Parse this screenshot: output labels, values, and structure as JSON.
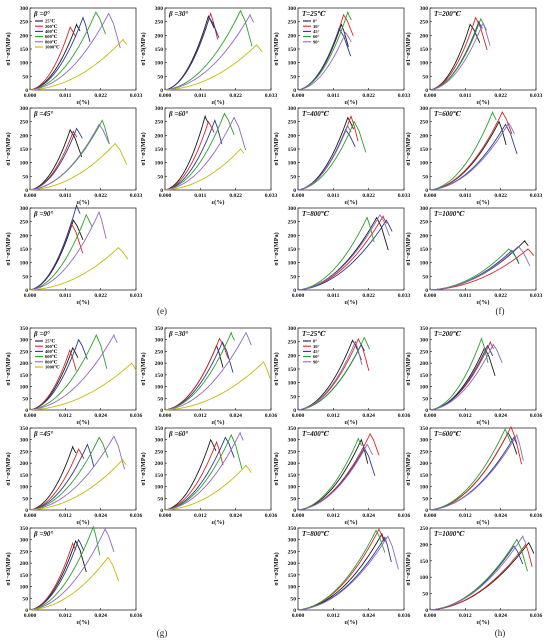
{
  "figure": {
    "captions": [
      {
        "id": "e",
        "text": "(e)"
      },
      {
        "id": "f",
        "text": "(f)"
      },
      {
        "id": "g",
        "text": "(g)"
      },
      {
        "id": "h",
        "text": "(h)"
      }
    ]
  },
  "axes": {
    "ylabel": "σ1−σ3(MPa)",
    "xlabel": "ε(%)",
    "x_ticks_top": [
      "0.000",
      "0.011",
      "0.022",
      "0.033"
    ],
    "x_ticks_bottom": [
      "0.000",
      "0.012",
      "0.024",
      "0.036"
    ],
    "y_ticks": [
      "0",
      "50",
      "100",
      "150",
      "200",
      "250",
      "300"
    ],
    "y_ticks_bottom": [
      "0",
      "50",
      "100",
      "150",
      "200",
      "250",
      "300",
      "350"
    ]
  },
  "legend_temp": {
    "title": "β =0°",
    "entries": [
      "25℃",
      "200℃",
      "400℃",
      "600℃",
      "800℃",
      "1000℃"
    ]
  },
  "legend_angle": {
    "title": "T=25℃",
    "entries": [
      "0°",
      "30°",
      "45°",
      "60°",
      "90°"
    ]
  },
  "colors": {
    "temp": [
      "#1a1a1a",
      "#d62728",
      "#2b3a8f",
      "#2ca02c",
      "#8e6bbf",
      "#c9b80a"
    ],
    "angle": [
      "#1a1a1a",
      "#d62728",
      "#2b3a8f",
      "#2ca02c",
      "#8e6bbf"
    ]
  },
  "chart_data": [
    {
      "id": "e1",
      "type": "line",
      "title": "β =0°",
      "xlabel": "ε(%)",
      "ylabel": "σ1−σ3(MPa)",
      "xlim": [
        0,
        0.033
      ],
      "ylim": [
        0,
        300
      ],
      "legend": "temperature",
      "series": [
        {
          "name": "25℃",
          "x_peak": 0.0145,
          "y_peak": 240
        },
        {
          "name": "200℃",
          "x_peak": 0.0125,
          "y_peak": 230
        },
        {
          "name": "400℃",
          "x_peak": 0.0165,
          "y_peak": 265
        },
        {
          "name": "600℃",
          "x_peak": 0.0205,
          "y_peak": 285
        },
        {
          "name": "800℃",
          "x_peak": 0.0245,
          "y_peak": 280
        },
        {
          "name": "1000℃",
          "x_peak": 0.029,
          "y_peak": 185
        }
      ]
    },
    {
      "id": "e2",
      "type": "line",
      "title": "β =30°",
      "xlabel": "ε(%)",
      "ylabel": "σ1−σ3(MPa)",
      "xlim": [
        0,
        0.033
      ],
      "ylim": [
        0,
        300
      ],
      "series": [
        {
          "name": "25℃",
          "x_peak": 0.0135,
          "y_peak": 270
        },
        {
          "name": "200℃",
          "x_peak": 0.0142,
          "y_peak": 280
        },
        {
          "name": "400℃",
          "x_peak": 0.0138,
          "y_peak": 265
        },
        {
          "name": "600℃",
          "x_peak": 0.0235,
          "y_peak": 290
        },
        {
          "name": "800℃",
          "x_peak": 0.0265,
          "y_peak": 275
        },
        {
          "name": "1000℃",
          "x_peak": 0.0285,
          "y_peak": 165
        }
      ]
    },
    {
      "id": "e3",
      "type": "line",
      "title": "T=25℃",
      "xlabel": "ε(%)",
      "ylabel": "σ1−σ3(MPa)",
      "xlim": [
        0,
        0.033
      ],
      "ylim": [
        0,
        300
      ],
      "legend": "angle",
      "series": [
        {
          "name": "0°",
          "x_peak": 0.0135,
          "y_peak": 240
        },
        {
          "name": "30°",
          "x_peak": 0.0142,
          "y_peak": 275
        },
        {
          "name": "45°",
          "x_peak": 0.0128,
          "y_peak": 225
        },
        {
          "name": "60°",
          "x_peak": 0.0155,
          "y_peak": 285
        },
        {
          "name": "90°",
          "x_peak": 0.0148,
          "y_peak": 210
        }
      ]
    },
    {
      "id": "e4",
      "type": "line",
      "title": "T=200℃",
      "xlabel": "ε(%)",
      "ylabel": "σ1−σ3(MPa)",
      "xlim": [
        0,
        0.033
      ],
      "ylim": [
        0,
        300
      ],
      "series": [
        {
          "name": "0°",
          "x_peak": 0.0125,
          "y_peak": 240
        },
        {
          "name": "30°",
          "x_peak": 0.0142,
          "y_peak": 265
        },
        {
          "name": "45°",
          "x_peak": 0.0152,
          "y_peak": 250
        },
        {
          "name": "60°",
          "x_peak": 0.0158,
          "y_peak": 260
        },
        {
          "name": "90°",
          "x_peak": 0.0165,
          "y_peak": 245
        }
      ]
    },
    {
      "id": "e5",
      "type": "line",
      "title": "β =45°",
      "xlabel": "ε(%)",
      "ylabel": "σ1−σ3(MPa)",
      "xlim": [
        0,
        0.033
      ],
      "ylim": [
        0,
        300
      ],
      "series": [
        {
          "name": "25℃",
          "x_peak": 0.0125,
          "y_peak": 220
        },
        {
          "name": "200℃",
          "x_peak": 0.0135,
          "y_peak": 215
        },
        {
          "name": "400℃",
          "x_peak": 0.0145,
          "y_peak": 225
        },
        {
          "name": "600℃",
          "x_peak": 0.0225,
          "y_peak": 255
        },
        {
          "name": "800℃",
          "x_peak": 0.0215,
          "y_peak": 240
        },
        {
          "name": "1000℃",
          "x_peak": 0.0265,
          "y_peak": 170
        }
      ]
    },
    {
      "id": "e6",
      "type": "line",
      "title": "β =60°",
      "xlabel": "ε(%)",
      "ylabel": "σ1−σ3(MPa)",
      "xlim": [
        0,
        0.033
      ],
      "ylim": [
        0,
        300
      ],
      "series": [
        {
          "name": "25℃",
          "x_peak": 0.0125,
          "y_peak": 270
        },
        {
          "name": "200℃",
          "x_peak": 0.0135,
          "y_peak": 250
        },
        {
          "name": "400℃",
          "x_peak": 0.0155,
          "y_peak": 255
        },
        {
          "name": "600℃",
          "x_peak": 0.0185,
          "y_peak": 280
        },
        {
          "name": "800℃",
          "x_peak": 0.0215,
          "y_peak": 265
        },
        {
          "name": "1000℃",
          "x_peak": 0.0235,
          "y_peak": 150
        }
      ]
    },
    {
      "id": "e7",
      "type": "line",
      "title": "T=400℃",
      "xlabel": "ε(%)",
      "ylabel": "σ1−σ3(MPa)",
      "xlim": [
        0,
        0.033
      ],
      "ylim": [
        0,
        300
      ],
      "series": [
        {
          "name": "0°",
          "x_peak": 0.0155,
          "y_peak": 265
        },
        {
          "name": "30°",
          "x_peak": 0.0165,
          "y_peak": 270
        },
        {
          "name": "45°",
          "x_peak": 0.0148,
          "y_peak": 220
        },
        {
          "name": "60°",
          "x_peak": 0.0175,
          "y_peak": 250
        },
        {
          "name": "90°",
          "x_peak": 0.0155,
          "y_peak": 235
        }
      ]
    },
    {
      "id": "e8",
      "type": "line",
      "title": "T=600℃",
      "xlabel": "ε(%)",
      "ylabel": "σ1−σ3(MPa)",
      "xlim": [
        0,
        0.033
      ],
      "ylim": [
        0,
        300
      ],
      "series": [
        {
          "name": "0°",
          "x_peak": 0.0215,
          "y_peak": 250
        },
        {
          "name": "30°",
          "x_peak": 0.0225,
          "y_peak": 285
        },
        {
          "name": "45°",
          "x_peak": 0.0235,
          "y_peak": 240
        },
        {
          "name": "60°",
          "x_peak": 0.0195,
          "y_peak": 285
        },
        {
          "name": "90°",
          "x_peak": 0.0245,
          "y_peak": 245
        }
      ]
    },
    {
      "id": "e9",
      "type": "line",
      "title": "β =90°",
      "xlabel": "ε(%)",
      "ylabel": "σ1−σ3(MPa)",
      "xlim": [
        0,
        0.033
      ],
      "ylim": [
        0,
        300
      ],
      "series": [
        {
          "name": "25℃",
          "x_peak": 0.0135,
          "y_peak": 255
        },
        {
          "name": "200℃",
          "x_peak": 0.0128,
          "y_peak": 245
        },
        {
          "name": "400℃",
          "x_peak": 0.0145,
          "y_peak": 310
        },
        {
          "name": "600℃",
          "x_peak": 0.0175,
          "y_peak": 275
        },
        {
          "name": "800℃",
          "x_peak": 0.0215,
          "y_peak": 285
        },
        {
          "name": "1000℃",
          "x_peak": 0.0275,
          "y_peak": 155
        }
      ]
    },
    {
      "id": "e10",
      "type": "line",
      "title": "T=800℃",
      "xlabel": "ε(%)",
      "ylabel": "σ1−σ3(MPa)",
      "xlim": [
        0,
        0.033
      ],
      "ylim": [
        0,
        300
      ],
      "series": [
        {
          "name": "0°",
          "x_peak": 0.0245,
          "y_peak": 265
        },
        {
          "name": "30°",
          "x_peak": 0.0265,
          "y_peak": 270
        },
        {
          "name": "45°",
          "x_peak": 0.0275,
          "y_peak": 255
        },
        {
          "name": "60°",
          "x_peak": 0.0215,
          "y_peak": 265
        },
        {
          "name": "90°",
          "x_peak": 0.0255,
          "y_peak": 275
        }
      ]
    },
    {
      "id": "e11",
      "type": "line",
      "title": "T=1000℃",
      "xlabel": "ε(%)",
      "ylabel": "σ1−σ3(MPa)",
      "xlim": [
        0,
        0.033
      ],
      "ylim": [
        0,
        300
      ],
      "series": [
        {
          "name": "0°",
          "x_peak": 0.0295,
          "y_peak": 180
        },
        {
          "name": "30°",
          "x_peak": 0.0305,
          "y_peak": 150
        },
        {
          "name": "45°",
          "x_peak": 0.0255,
          "y_peak": 145
        },
        {
          "name": "60°",
          "x_peak": 0.0245,
          "y_peak": 150
        },
        {
          "name": "90°",
          "x_peak": 0.0275,
          "y_peak": 160
        }
      ]
    },
    {
      "id": "g1",
      "type": "line",
      "title": "β =0°",
      "xlabel": "ε(%)",
      "ylabel": "σ1−σ3(MPa)",
      "xlim": [
        0,
        0.036
      ],
      "ylim": [
        0,
        350
      ],
      "legend": "temperature",
      "series": [
        {
          "name": "25℃",
          "x_peak": 0.0145,
          "y_peak": 265
        },
        {
          "name": "200℃",
          "x_peak": 0.0135,
          "y_peak": 255
        },
        {
          "name": "400℃",
          "x_peak": 0.0165,
          "y_peak": 300
        },
        {
          "name": "600℃",
          "x_peak": 0.0225,
          "y_peak": 320
        },
        {
          "name": "800℃",
          "x_peak": 0.0285,
          "y_peak": 320
        },
        {
          "name": "1000℃",
          "x_peak": 0.0345,
          "y_peak": 200
        }
      ]
    },
    {
      "id": "g2",
      "type": "line",
      "title": "β =30°",
      "xlabel": "ε(%)",
      "ylabel": "σ1−σ3(MPa)",
      "xlim": [
        0,
        0.036
      ],
      "ylim": [
        0,
        350
      ],
      "series": [
        {
          "name": "25℃",
          "x_peak": 0.0175,
          "y_peak": 275
        },
        {
          "name": "200℃",
          "x_peak": 0.0185,
          "y_peak": 305
        },
        {
          "name": "400℃",
          "x_peak": 0.0195,
          "y_peak": 290
        },
        {
          "name": "600℃",
          "x_peak": 0.0225,
          "y_peak": 330
        },
        {
          "name": "800℃",
          "x_peak": 0.0275,
          "y_peak": 330
        },
        {
          "name": "1000℃",
          "x_peak": 0.0335,
          "y_peak": 205
        }
      ]
    },
    {
      "id": "g3",
      "type": "line",
      "title": "T=25℃",
      "xlabel": "ε(%)",
      "ylabel": "σ1−σ3(MPa)",
      "xlim": [
        0,
        0.036
      ],
      "ylim": [
        0,
        300
      ],
      "legend": "angle",
      "series": [
        {
          "name": "0°",
          "x_peak": 0.0185,
          "y_peak": 255
        },
        {
          "name": "30°",
          "x_peak": 0.0205,
          "y_peak": 260
        },
        {
          "name": "45°",
          "x_peak": 0.0215,
          "y_peak": 240
        },
        {
          "name": "60°",
          "x_peak": 0.0225,
          "y_peak": 265
        },
        {
          "name": "90°",
          "x_peak": 0.0195,
          "y_peak": 250
        }
      ]
    },
    {
      "id": "g4",
      "type": "line",
      "title": "T=200℃",
      "xlabel": "ε(%)",
      "ylabel": "σ1−σ3(MPa)",
      "xlim": [
        0,
        0.036
      ],
      "ylim": [
        0,
        350
      ],
      "series": [
        {
          "name": "0°",
          "x_peak": 0.0185,
          "y_peak": 265
        },
        {
          "name": "30°",
          "x_peak": 0.0205,
          "y_peak": 290
        },
        {
          "name": "45°",
          "x_peak": 0.0195,
          "y_peak": 275
        },
        {
          "name": "60°",
          "x_peak": 0.0175,
          "y_peak": 305
        },
        {
          "name": "90°",
          "x_peak": 0.0215,
          "y_peak": 280
        }
      ]
    },
    {
      "id": "g5",
      "type": "line",
      "title": "β =45°",
      "xlabel": "ε(%)",
      "ylabel": "σ1−σ3(MPa)",
      "xlim": [
        0,
        0.036
      ],
      "ylim": [
        0,
        350
      ],
      "series": [
        {
          "name": "25℃",
          "x_peak": 0.0145,
          "y_peak": 270
        },
        {
          "name": "200℃",
          "x_peak": 0.0165,
          "y_peak": 260
        },
        {
          "name": "400℃",
          "x_peak": 0.0195,
          "y_peak": 280
        },
        {
          "name": "600℃",
          "x_peak": 0.0235,
          "y_peak": 310
        },
        {
          "name": "800℃",
          "x_peak": 0.0285,
          "y_peak": 315
        },
        {
          "name": "1000℃",
          "x_peak": 0.0315,
          "y_peak": 215
        }
      ]
    },
    {
      "id": "g6",
      "type": "line",
      "title": "β =60°",
      "xlabel": "ε(%)",
      "ylabel": "σ1−σ3(MPa)",
      "xlim": [
        0,
        0.036
      ],
      "ylim": [
        0,
        350
      ],
      "series": [
        {
          "name": "25℃",
          "x_peak": 0.0155,
          "y_peak": 300
        },
        {
          "name": "200℃",
          "x_peak": 0.0175,
          "y_peak": 290
        },
        {
          "name": "400℃",
          "x_peak": 0.0205,
          "y_peak": 310
        },
        {
          "name": "600℃",
          "x_peak": 0.0225,
          "y_peak": 320
        },
        {
          "name": "800℃",
          "x_peak": 0.0255,
          "y_peak": 330
        },
        {
          "name": "1000℃",
          "x_peak": 0.0275,
          "y_peak": 190
        }
      ]
    },
    {
      "id": "g7",
      "type": "line",
      "title": "T=400℃",
      "xlabel": "ε(%)",
      "ylabel": "σ1−σ3(MPa)",
      "xlim": [
        0,
        0.036
      ],
      "ylim": [
        0,
        350
      ],
      "series": [
        {
          "name": "0°",
          "x_peak": 0.0215,
          "y_peak": 300
        },
        {
          "name": "30°",
          "x_peak": 0.0245,
          "y_peak": 325
        },
        {
          "name": "45°",
          "x_peak": 0.0225,
          "y_peak": 265
        },
        {
          "name": "60°",
          "x_peak": 0.0205,
          "y_peak": 305
        },
        {
          "name": "90°",
          "x_peak": 0.0235,
          "y_peak": 280
        }
      ]
    },
    {
      "id": "g8",
      "type": "line",
      "title": "T=600℃",
      "xlabel": "ε(%)",
      "ylabel": "σ1−σ3(MPa)",
      "xlim": [
        0,
        0.036
      ],
      "ylim": [
        0,
        350
      ],
      "series": [
        {
          "name": "0°",
          "x_peak": 0.0265,
          "y_peak": 330
        },
        {
          "name": "30°",
          "x_peak": 0.0275,
          "y_peak": 355
        },
        {
          "name": "45°",
          "x_peak": 0.0285,
          "y_peak": 310
        },
        {
          "name": "60°",
          "x_peak": 0.0255,
          "y_peak": 345
        },
        {
          "name": "90°",
          "x_peak": 0.0295,
          "y_peak": 320
        }
      ]
    },
    {
      "id": "g9",
      "type": "line",
      "title": "β =90°",
      "xlabel": "ε(%)",
      "ylabel": "σ1−σ3(MPa)",
      "xlim": [
        0,
        0.036
      ],
      "ylim": [
        0,
        350
      ],
      "series": [
        {
          "name": "25℃",
          "x_peak": 0.0155,
          "y_peak": 295
        },
        {
          "name": "200℃",
          "x_peak": 0.0145,
          "y_peak": 285
        },
        {
          "name": "400℃",
          "x_peak": 0.0165,
          "y_peak": 300
        },
        {
          "name": "600℃",
          "x_peak": 0.0215,
          "y_peak": 355
        },
        {
          "name": "800℃",
          "x_peak": 0.0255,
          "y_peak": 345
        },
        {
          "name": "1000℃",
          "x_peak": 0.0265,
          "y_peak": 225
        }
      ]
    },
    {
      "id": "g10",
      "type": "line",
      "title": "T=800℃",
      "xlabel": "ε(%)",
      "ylabel": "σ1−σ3(MPa)",
      "xlim": [
        0,
        0.036
      ],
      "ylim": [
        0,
        350
      ],
      "series": [
        {
          "name": "0°",
          "x_peak": 0.0285,
          "y_peak": 325
        },
        {
          "name": "30°",
          "x_peak": 0.0275,
          "y_peak": 345
        },
        {
          "name": "45°",
          "x_peak": 0.0295,
          "y_peak": 310
        },
        {
          "name": "60°",
          "x_peak": 0.0265,
          "y_peak": 340
        },
        {
          "name": "90°",
          "x_peak": 0.0305,
          "y_peak": 315
        }
      ]
    },
    {
      "id": "g11",
      "type": "line",
      "title": "T=1000℃",
      "xlabel": "ε(%)",
      "ylabel": "σ1−σ3(MPa)",
      "xlim": [
        0,
        0.036
      ],
      "ylim": [
        0,
        250
      ],
      "series": [
        {
          "name": "0°",
          "x_peak": 0.0335,
          "y_peak": 205
        },
        {
          "name": "30°",
          "x_peak": 0.0325,
          "y_peak": 200
        },
        {
          "name": "45°",
          "x_peak": 0.0285,
          "y_peak": 195
        },
        {
          "name": "60°",
          "x_peak": 0.0295,
          "y_peak": 215
        },
        {
          "name": "90°",
          "x_peak": 0.0315,
          "y_peak": 225
        }
      ]
    }
  ]
}
